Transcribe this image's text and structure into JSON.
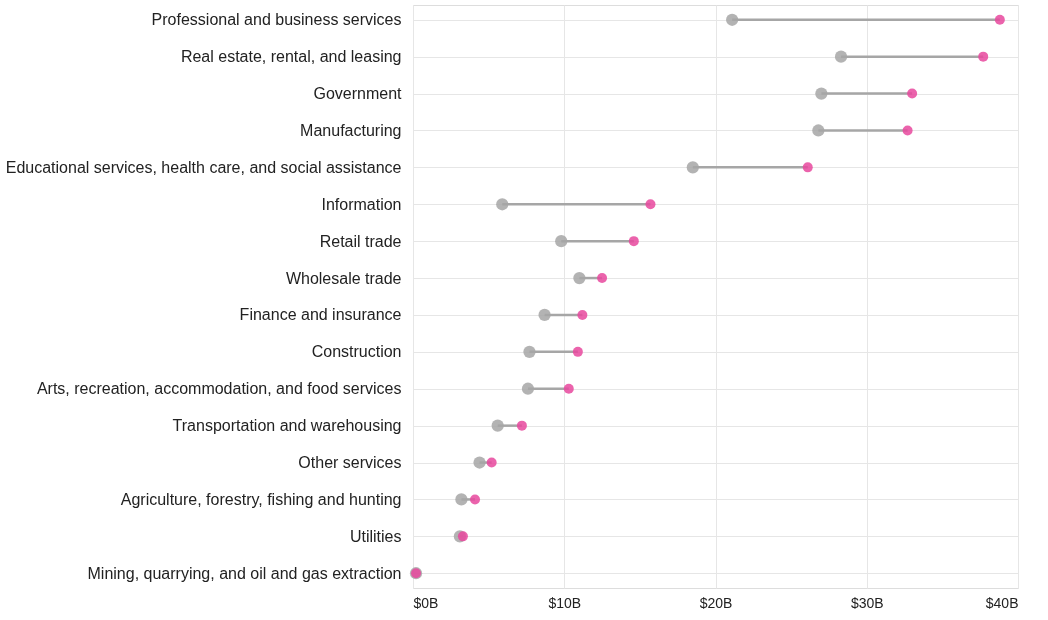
{
  "chart_data": {
    "type": "scatter",
    "orientation": "horizontal",
    "categories": [
      "Professional and business services",
      "Real estate, rental, and leasing",
      "Government",
      "Manufacturing",
      "Educational services, health care, and social assistance",
      "Information",
      "Retail trade",
      "Wholesale trade",
      "Finance and insurance",
      "Construction",
      "Arts, recreation, accommodation, and food services",
      "Transportation and warehousing",
      "Other services",
      "Agriculture, forestry, fishing and hunting",
      "Utilities",
      "Mining, quarrying, and oil and gas extraction"
    ],
    "series": [
      {
        "color": "#a6a6a6",
        "values": [
          21.1,
          28.3,
          27.0,
          26.8,
          18.5,
          5.9,
          9.8,
          11.0,
          8.7,
          7.7,
          7.6,
          5.6,
          4.4,
          3.2,
          3.1,
          0.2
        ]
      },
      {
        "color": "#e8489e",
        "values": [
          38.8,
          37.7,
          33.0,
          32.7,
          26.1,
          15.7,
          14.6,
          12.5,
          11.2,
          10.9,
          10.3,
          7.2,
          5.2,
          4.1,
          3.3,
          0.2
        ]
      }
    ],
    "xlim": [
      0,
      40
    ],
    "xticks": [
      {
        "value": 0,
        "label": "$0B"
      },
      {
        "value": 10,
        "label": "$10B"
      },
      {
        "value": 20,
        "label": "$20B"
      },
      {
        "value": 30,
        "label": "$30B"
      },
      {
        "value": 40,
        "label": "$40B"
      }
    ],
    "grid": true,
    "legend": false,
    "marker": "circle"
  }
}
